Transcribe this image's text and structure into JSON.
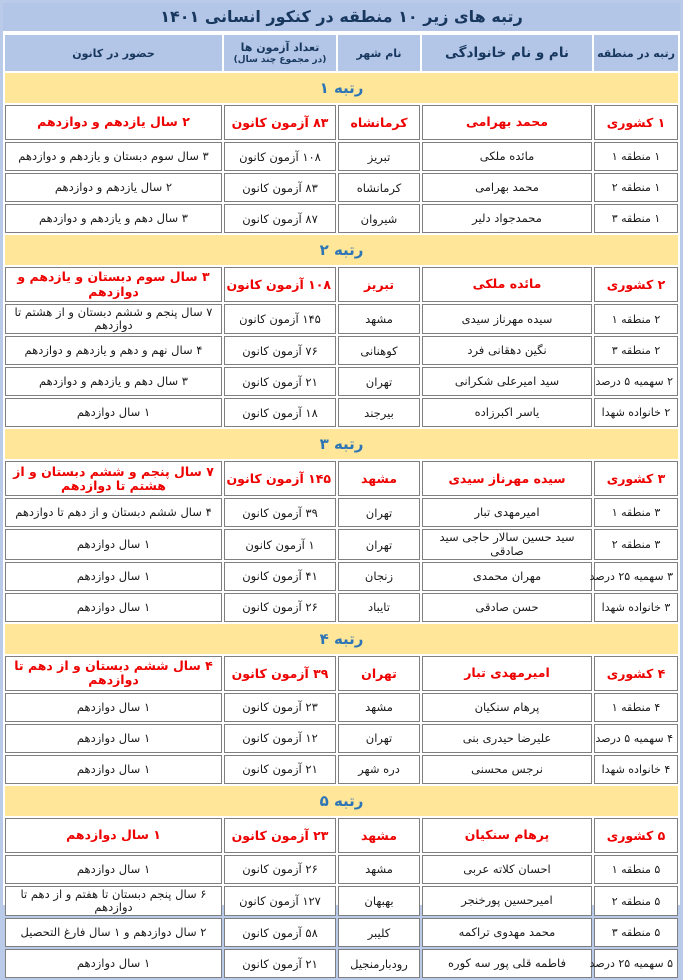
{
  "title": "رتبه های زیر ۱۰ منطقه در کنکور انسانی ۱۴۰۱",
  "columns": {
    "rank": "رتبه در منطقه",
    "name": "نام و نام خانوادگی",
    "city": "نام شهر",
    "tests": "تعداد آزمون ها",
    "tests_sub": "(در مجموع چند سال)",
    "attendance": "حضور در کانون"
  },
  "colors": {
    "header_bg": "#b4c6e7",
    "band_bg": "#ffe699",
    "band_text": "#2e75b6",
    "title_text": "#17375e",
    "highlight_text": "#ee0000",
    "cell_border": "#7f7f7f"
  },
  "sections": [
    {
      "header": "رتبه ۱",
      "rows": [
        {
          "highlight": true,
          "rank": "۱ کشوری",
          "name": "محمد بهرامی",
          "city": "کرمانشاه",
          "tests": "۸۳ آزمون کانون",
          "attendance": "۲ سال یازدهم و دوازدهم"
        },
        {
          "highlight": false,
          "rank": "۱ منطقه ۱",
          "name": "مائده ملکی",
          "city": "تبریز",
          "tests": "۱۰۸ آزمون کانون",
          "attendance": "۳ سال سوم دبستان و یازدهم و دوازدهم"
        },
        {
          "highlight": false,
          "rank": "۱ منطقه ۲",
          "name": "محمد بهرامی",
          "city": "کرمانشاه",
          "tests": "۸۳ آزمون کانون",
          "attendance": "۲ سال یازدهم و دوازدهم"
        },
        {
          "highlight": false,
          "rank": "۱ منطقه ۳",
          "name": "محمدجواد دلیر",
          "city": "شیروان",
          "tests": "۸۷ آزمون کانون",
          "attendance": "۳ سال دهم و یازدهم و دوازدهم"
        }
      ]
    },
    {
      "header": "رتبه ۲",
      "rows": [
        {
          "highlight": true,
          "rank": "۲ کشوری",
          "name": "مائده ملکی",
          "city": "تبریز",
          "tests": "۱۰۸ آزمون کانون",
          "attendance": "۳ سال سوم دبستان و یازدهم و دوازدهم"
        },
        {
          "highlight": false,
          "rank": "۲ منطقه ۱",
          "name": "سیده مهرناز سیدی",
          "city": "مشهد",
          "tests": "۱۴۵ آزمون کانون",
          "attendance": "۷ سال پنجم و ششم دبستان و از هشتم تا دوازدهم"
        },
        {
          "highlight": false,
          "rank": "۲ منطقه ۳",
          "name": "نگین دهقانی فرد",
          "city": "کوهنانی",
          "tests": "۷۶ آزمون کانون",
          "attendance": "۴ سال نهم و دهم و یازدهم و دوازدهم"
        },
        {
          "highlight": false,
          "rank": "۲ سهمیه ۵ درصد",
          "name": "سید امیرعلی شکرانی",
          "city": "تهران",
          "tests": "۲۱ آزمون کانون",
          "attendance": "۳ سال دهم و یازدهم و دوازدهم"
        },
        {
          "highlight": false,
          "rank": "۲ خانواده شهدا",
          "name": "یاسر اکبرزاده",
          "city": "بیرجند",
          "tests": "۱۸ آزمون کانون",
          "attendance": "۱ سال دوازدهم"
        }
      ]
    },
    {
      "header": "رتبه ۳",
      "rows": [
        {
          "highlight": true,
          "rank": "۳ کشوری",
          "name": "سیده مهرناز سیدی",
          "city": "مشهد",
          "tests": "۱۴۵ آزمون کانون",
          "attendance": "۷ سال پنجم و ششم دبستان و از هشتم تا دوازدهم"
        },
        {
          "highlight": false,
          "rank": "۳ منطقه ۱",
          "name": "امیرمهدی تبار",
          "city": "تهران",
          "tests": "۳۹ آزمون کانون",
          "attendance": "۴ سال ششم دبستان و از دهم تا دوازدهم"
        },
        {
          "highlight": false,
          "rank": "۳ منطقه ۲",
          "name": "سید حسین سالار حاجی سید صادقی",
          "city": "تهران",
          "tests": "۱ آزمون کانون",
          "attendance": "۱ سال دوازدهم"
        },
        {
          "highlight": false,
          "rank": "۳ سهمیه ۲۵ درصد",
          "name": "مهران محمدی",
          "city": "زنجان",
          "tests": "۴۱ آزمون کانون",
          "attendance": "۱ سال دوازدهم"
        },
        {
          "highlight": false,
          "rank": "۳ خانواده شهدا",
          "name": "حسن صادقی",
          "city": "تایباد",
          "tests": "۲۶ آزمون کانون",
          "attendance": "۱ سال دوازدهم"
        }
      ]
    },
    {
      "header": "رتبه ۴",
      "rows": [
        {
          "highlight": true,
          "rank": "۴ کشوری",
          "name": "امیرمهدی تبار",
          "city": "تهران",
          "tests": "۳۹ آزمون کانون",
          "attendance": "۴ سال ششم دبستان و از دهم تا دوازدهم"
        },
        {
          "highlight": false,
          "rank": "۴ منطقه ۱",
          "name": "پرهام سنکیان",
          "city": "مشهد",
          "tests": "۲۳ آزمون کانون",
          "attendance": "۱ سال دوازدهم"
        },
        {
          "highlight": false,
          "rank": "۴ سهمیه ۵ درصد",
          "name": "علیرضا حیدری بنی",
          "city": "تهران",
          "tests": "۱۲ آزمون کانون",
          "attendance": "۱ سال دوازدهم"
        },
        {
          "highlight": false,
          "rank": "۴ خانواده شهدا",
          "name": "نرجس محسنی",
          "city": "دره شهر",
          "tests": "۲۱ آزمون کانون",
          "attendance": "۱ سال دوازدهم"
        }
      ]
    },
    {
      "header": "رتبه ۵",
      "rows": [
        {
          "highlight": true,
          "rank": "۵ کشوری",
          "name": "پرهام سنکیان",
          "city": "مشهد",
          "tests": "۲۳ آزمون کانون",
          "attendance": "۱ سال دوازدهم"
        },
        {
          "highlight": false,
          "rank": "۵ منطقه ۱",
          "name": "احسان کلاته عربی",
          "city": "مشهد",
          "tests": "۲۶ آزمون کانون",
          "attendance": "۱ سال دوازدهم"
        },
        {
          "highlight": false,
          "rank": "۵ منطقه ۲",
          "name": "امیرحسین پورخنجر",
          "city": "بهبهان",
          "tests": "۱۲۷ آزمون کانون",
          "attendance": "۶ سال پنجم دبستان تا هفتم و از دهم تا دوازدهم"
        },
        {
          "highlight": false,
          "rank": "۵ منطقه ۳",
          "name": "محمد مهدوی تراکمه",
          "city": "کلیبر",
          "tests": "۵۸ آزمون کانون",
          "attendance": "۲ سال دوازدهم و ۱ سال فارغ التحصیل"
        },
        {
          "highlight": false,
          "rank": "۵ سهمیه ۲۵ درصد",
          "name": "فاطمه قلی پور سه کوره",
          "city": "رودبارمنجیل",
          "tests": "۲۱ آزمون کانون",
          "attendance": "۱ سال دوازدهم"
        }
      ]
    }
  ]
}
